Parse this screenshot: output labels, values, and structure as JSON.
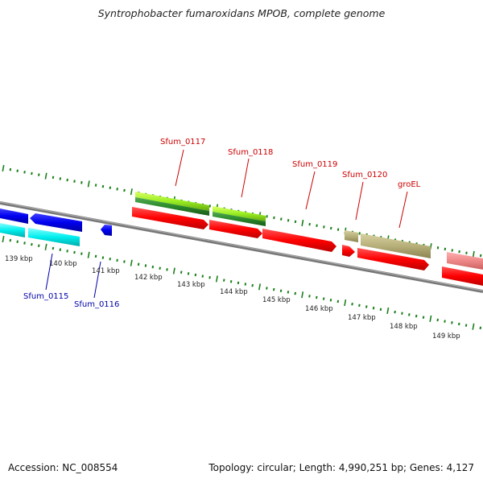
{
  "title": "Syntrophobacter fumaroxidans MPOB, complete genome",
  "footer": {
    "accession": "Accession: NC_008554",
    "topology": "Topology: circular; Length: 4,990,251 bp; Genes: 4,127"
  },
  "kbp_labels": [
    "139 kbp",
    "140 kbp",
    "141 kbp",
    "142 kbp",
    "143 kbp",
    "144 kbp",
    "145 kbp",
    "146 kbp",
    "147 kbp",
    "148 kbp",
    "149 kbp"
  ],
  "gene_labels": {
    "forward": [
      "Sfum_0117",
      "Sfum_0118",
      "Sfum_0119",
      "Sfum_0120",
      "groEL"
    ],
    "reverse": [
      "Sfum_0115",
      "Sfum_0116"
    ]
  },
  "colors": {
    "forward_label": "#cc0000",
    "reverse_label": "#0000aa",
    "ticks": "#1a7f1a",
    "backbone": "#888888",
    "red": "#ff0000",
    "blue": "#0000ee",
    "cyan": "#00eeee",
    "lime": "#99ee22",
    "dark_green": "#2a8a2a",
    "khaki": "#b8b07a",
    "pink": "#ee8888"
  }
}
